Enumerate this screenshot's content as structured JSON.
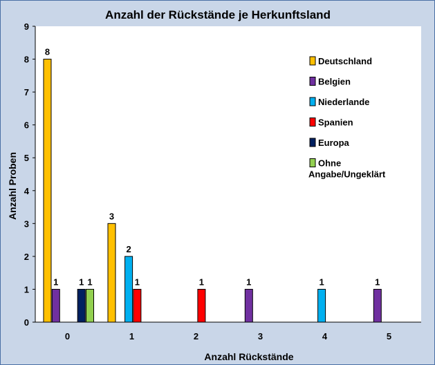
{
  "chart_data": {
    "type": "bar",
    "title": "Anzahl der Rückstände je Herkunftsland",
    "xlabel": "Anzahl Rückstände",
    "ylabel": "Anzahl Proben",
    "categories": [
      "0",
      "1",
      "2",
      "3",
      "4",
      "5"
    ],
    "ylim": [
      0,
      9
    ],
    "yticks": [
      0,
      1,
      2,
      3,
      4,
      5,
      6,
      7,
      8,
      9
    ],
    "grid": false,
    "legend_position": "top-right",
    "series": [
      {
        "name": "Deutschland",
        "color": "#ffc000",
        "values": [
          8,
          3,
          null,
          null,
          null,
          null
        ]
      },
      {
        "name": "Belgien",
        "color": "#7030a0",
        "values": [
          1,
          null,
          null,
          1,
          null,
          1
        ]
      },
      {
        "name": "Niederlande",
        "color": "#00b0f0",
        "values": [
          null,
          2,
          null,
          null,
          1,
          null
        ]
      },
      {
        "name": "Spanien",
        "color": "#ff0000",
        "values": [
          null,
          1,
          1,
          null,
          null,
          null
        ]
      },
      {
        "name": "Europa",
        "color": "#002060",
        "values": [
          1,
          null,
          null,
          null,
          null,
          null
        ]
      },
      {
        "name": "Ohne Angabe/Ungeklärt",
        "legend_lines": [
          "Ohne",
          "Angabe/Ungeklärt"
        ],
        "color": "#92d050",
        "values": [
          1,
          null,
          null,
          null,
          null,
          null
        ]
      }
    ]
  }
}
